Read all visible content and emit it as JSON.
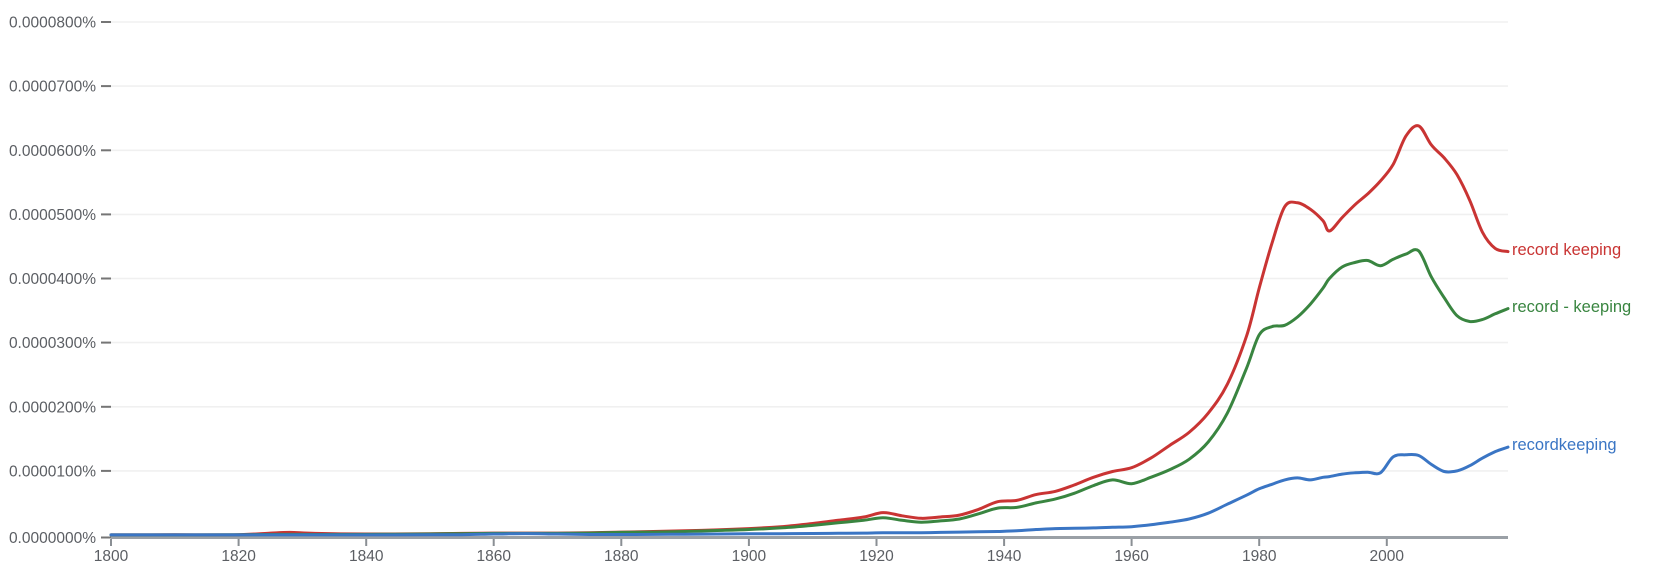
{
  "chart_data": {
    "type": "line",
    "title": "",
    "xlabel": "",
    "ylabel": "",
    "grid": true,
    "legend_position": "right-of-line-ends",
    "colors": {
      "background": "#ffffff",
      "gridline": "#f0f0f0",
      "axis_line": "#9aa0a6",
      "tick_mark": "#8a8f94",
      "tick_label": "#5b5e63",
      "y_dash": "#757575"
    },
    "x_axis": {
      "range": [
        1800,
        2019
      ],
      "ticks": [
        {
          "value": 1800,
          "label": "1800"
        },
        {
          "value": 1820,
          "label": "1820"
        },
        {
          "value": 1840,
          "label": "1840"
        },
        {
          "value": 1860,
          "label": "1860"
        },
        {
          "value": 1880,
          "label": "1880"
        },
        {
          "value": 1900,
          "label": "1900"
        },
        {
          "value": 1920,
          "label": "1920"
        },
        {
          "value": 1940,
          "label": "1940"
        },
        {
          "value": 1960,
          "label": "1960"
        },
        {
          "value": 1980,
          "label": "1980"
        },
        {
          "value": 2000,
          "label": "2000"
        }
      ]
    },
    "y_axis": {
      "range": [
        0,
        8e-05
      ],
      "unit": "% of all bigrams",
      "ticks": [
        {
          "value": 0.0,
          "label": "0.0000000%"
        },
        {
          "value": 1e-05,
          "label": "0.0000100%"
        },
        {
          "value": 2e-05,
          "label": "0.0000200%"
        },
        {
          "value": 3e-05,
          "label": "0.0000300%"
        },
        {
          "value": 4e-05,
          "label": "0.0000400%"
        },
        {
          "value": 5e-05,
          "label": "0.0000500%"
        },
        {
          "value": 6e-05,
          "label": "0.0000600%"
        },
        {
          "value": 7e-05,
          "label": "0.0000700%"
        },
        {
          "value": 8e-05,
          "label": "0.0000800%"
        }
      ]
    },
    "x": [
      1800,
      1810,
      1820,
      1825,
      1828,
      1832,
      1840,
      1850,
      1855,
      1860,
      1865,
      1870,
      1875,
      1880,
      1885,
      1890,
      1895,
      1900,
      1905,
      1910,
      1914,
      1918,
      1921,
      1924,
      1927,
      1930,
      1933,
      1936,
      1939,
      1942,
      1945,
      1948,
      1951,
      1954,
      1957,
      1960,
      1963,
      1966,
      1969,
      1972,
      1975,
      1978,
      1980,
      1982,
      1984,
      1986,
      1988,
      1990,
      1991,
      1993,
      1995,
      1997,
      1999,
      2001,
      2003,
      2005,
      2007,
      2009,
      2011,
      2013,
      2015,
      2017,
      2019
    ],
    "series": [
      {
        "name": "record keeping",
        "label": "record keeping",
        "color": "#c93433",
        "values": [
          2e-08,
          3e-08,
          5e-08,
          3e-07,
          4e-07,
          2.5e-07,
          1.5e-07,
          2e-07,
          2.5e-07,
          3e-07,
          3e-07,
          3e-07,
          3.5e-07,
          4.5e-07,
          5.5e-07,
          6.5e-07,
          8e-07,
          1e-06,
          1.3e-06,
          1.8e-06,
          2.3e-06,
          2.8e-06,
          3.5e-06,
          3e-06,
          2.6e-06,
          2.8e-06,
          3.1e-06,
          4e-06,
          5.2e-06,
          5.4e-06,
          6.3e-06,
          6.8e-06,
          7.8e-06,
          9e-06,
          9.9e-06,
          1.05e-05,
          1.2e-05,
          1.4e-05,
          1.6e-05,
          1.9e-05,
          2.35e-05,
          3.1e-05,
          3.85e-05,
          4.55e-05,
          5.12e-05,
          5.18e-05,
          5.08e-05,
          4.9e-05,
          4.74e-05,
          4.95e-05,
          5.15e-05,
          5.32e-05,
          5.52e-05,
          5.78e-05,
          6.22e-05,
          6.38e-05,
          6.08e-05,
          5.88e-05,
          5.62e-05,
          5.22e-05,
          4.72e-05,
          4.47e-05,
          4.42e-05
        ]
      },
      {
        "name": "record - keeping",
        "label": "record - keeping",
        "color": "#398540",
        "values": [
          2e-08,
          2e-08,
          4e-08,
          8e-08,
          1e-07,
          8e-08,
          1e-07,
          1.5e-07,
          2e-07,
          2.5e-07,
          2.5e-07,
          2.5e-07,
          3e-07,
          4e-07,
          4.5e-07,
          5.5e-07,
          7e-07,
          8.5e-07,
          1.1e-06,
          1.5e-06,
          1.9e-06,
          2.3e-06,
          2.7e-06,
          2.3e-06,
          2e-06,
          2.2e-06,
          2.5e-06,
          3.3e-06,
          4.2e-06,
          4.3e-06,
          5e-06,
          5.6e-06,
          6.5e-06,
          7.7e-06,
          8.6e-06,
          8e-06,
          9e-06,
          1.02e-05,
          1.18e-05,
          1.45e-05,
          1.9e-05,
          2.6e-05,
          3.12e-05,
          3.25e-05,
          3.27e-05,
          3.4e-05,
          3.6e-05,
          3.85e-05,
          4e-05,
          4.18e-05,
          4.25e-05,
          4.28e-05,
          4.2e-05,
          4.3e-05,
          4.38e-05,
          4.43e-05,
          4.02e-05,
          3.7e-05,
          3.42e-05,
          3.33e-05,
          3.36e-05,
          3.45e-05,
          3.53e-05
        ]
      },
      {
        "name": "recordkeeping",
        "label": "recordkeeping",
        "color": "#3a75c4",
        "values": [
          1e-08,
          1e-08,
          1e-08,
          1e-08,
          2e-08,
          2e-08,
          2e-08,
          3e-08,
          5e-08,
          1.5e-07,
          2.2e-07,
          1.5e-07,
          8e-08,
          8e-08,
          1e-07,
          1.2e-07,
          1.5e-07,
          1.8e-07,
          2e-07,
          2.3e-07,
          2.6e-07,
          3e-07,
          3.5e-07,
          3.5e-07,
          3.5e-07,
          4e-07,
          4.5e-07,
          5e-07,
          5.5e-07,
          6.5e-07,
          8.5e-07,
          1e-06,
          1.05e-06,
          1.1e-06,
          1.2e-06,
          1.3e-06,
          1.6e-06,
          2e-06,
          2.5e-06,
          3.4e-06,
          4.8e-06,
          6.2e-06,
          7.2e-06,
          7.9e-06,
          8.6e-06,
          8.9e-06,
          8.6e-06,
          9e-06,
          9.1e-06,
          9.5e-06,
          9.7e-06,
          9.8e-06,
          9.7e-06,
          1.22e-05,
          1.25e-05,
          1.24e-05,
          1.1e-05,
          9.9e-06,
          1e-05,
          1.08e-05,
          1.2e-05,
          1.3e-05,
          1.37e-05
        ]
      }
    ]
  }
}
